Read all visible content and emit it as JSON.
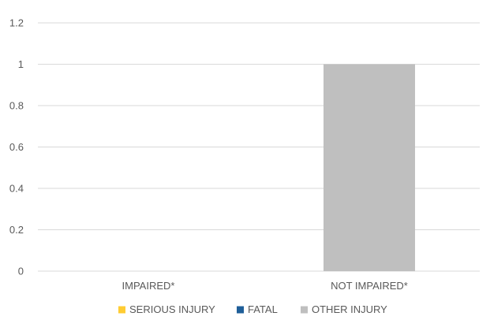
{
  "chart_data": {
    "type": "bar",
    "stacked": true,
    "categories": [
      "IMPAIRED*",
      "NOT IMPAIRED*"
    ],
    "series": [
      {
        "name": "SERIOUS INJURY",
        "color": "#FFCC33",
        "values": [
          0,
          0
        ]
      },
      {
        "name": "FATAL",
        "color": "#1F5F99",
        "values": [
          0,
          0
        ]
      },
      {
        "name": "OTHER INJURY",
        "color": "#BFBFBF",
        "values": [
          0,
          1
        ]
      }
    ],
    "y_ticks": [
      "0",
      "0.2",
      "0.4",
      "0.6",
      "0.8",
      "1",
      "1.2"
    ],
    "ylim": [
      0,
      1.2
    ],
    "grid": true,
    "legend_position": "bottom"
  }
}
